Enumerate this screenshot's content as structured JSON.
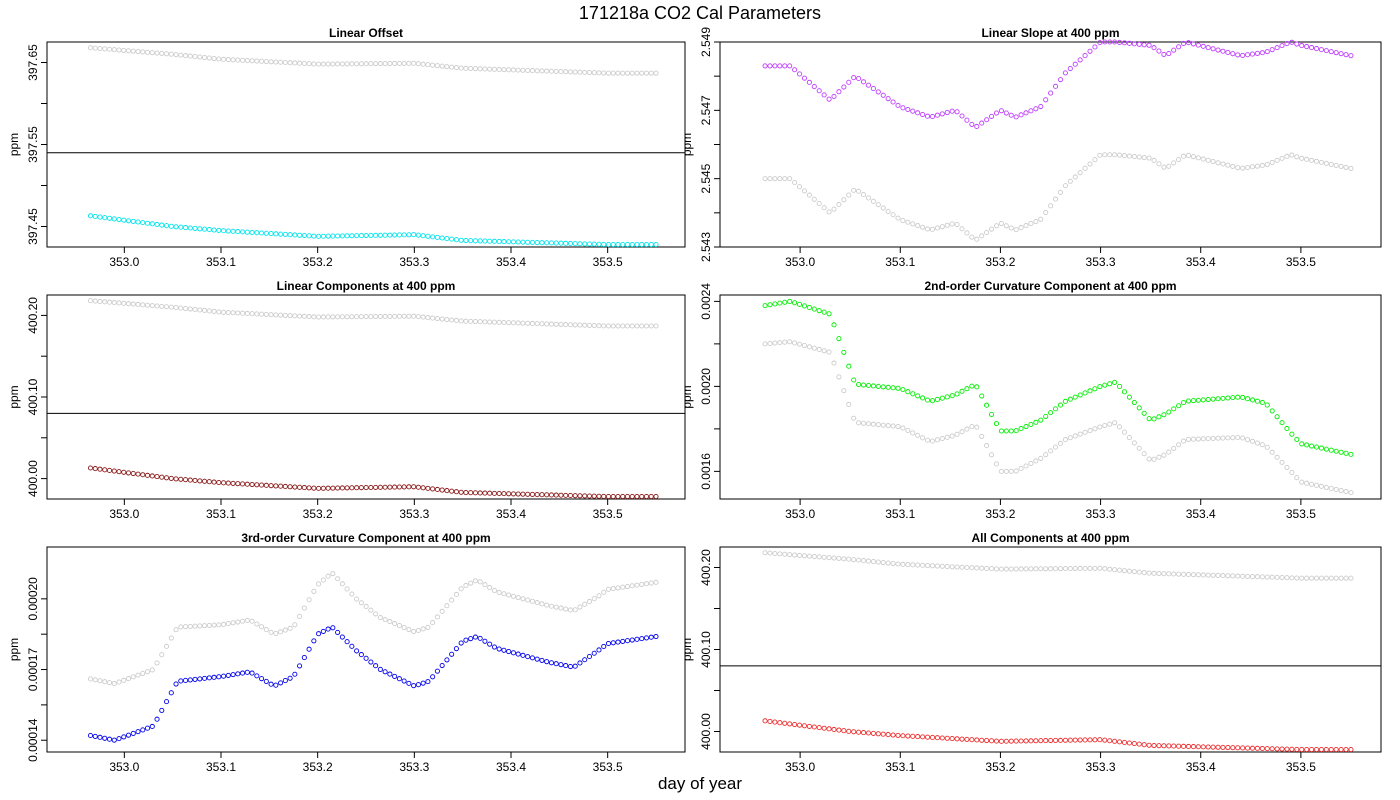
{
  "page": {
    "title": "171218a   CO2 Cal Parameters",
    "xlabel": "day of year"
  },
  "chart_data": [
    {
      "type": "scatter",
      "title": "Linear Offset",
      "ylabel": "ppm",
      "xlim": [
        352.92,
        353.58
      ],
      "ylim": [
        397.425,
        397.675
      ],
      "x_ticks": [
        353.0,
        353.1,
        353.2,
        353.3,
        353.4,
        353.5
      ],
      "x_tick_labels": [
        "353.0",
        "353.1",
        "353.2",
        "353.3",
        "353.4",
        "353.5"
      ],
      "y_ticks": [
        397.45,
        397.5,
        397.55,
        397.6,
        397.65
      ],
      "y_tick_labels": [
        "397.45",
        "",
        "397.55",
        "",
        "397.65"
      ],
      "hline": 397.54,
      "x_range": [
        352.965,
        353.55
      ],
      "series": [
        {
          "color": "#cccccc",
          "x": [
            352.965,
            353.05,
            353.1,
            353.2,
            353.3,
            353.35,
            353.5,
            353.55
          ],
          "y": [
            397.668,
            397.66,
            397.654,
            397.648,
            397.649,
            397.643,
            397.637,
            397.637
          ]
        },
        {
          "color": "#00e5ee",
          "x": [
            352.965,
            353.05,
            353.1,
            353.2,
            353.3,
            353.35,
            353.5,
            353.55
          ],
          "y": [
            397.463,
            397.45,
            397.445,
            397.438,
            397.44,
            397.433,
            397.428,
            397.428
          ]
        }
      ]
    },
    {
      "type": "scatter",
      "title": "Linear Slope at 400 ppm",
      "ylabel": "ppm",
      "xlim": [
        352.92,
        353.58
      ],
      "ylim": [
        2.543,
        2.549
      ],
      "x_ticks": [
        353.0,
        353.1,
        353.2,
        353.3,
        353.4,
        353.5
      ],
      "x_tick_labels": [
        "353.0",
        "353.1",
        "353.2",
        "353.3",
        "353.4",
        "353.5"
      ],
      "y_ticks": [
        2.543,
        2.544,
        2.545,
        2.546,
        2.547,
        2.548,
        2.549
      ],
      "y_tick_labels": [
        "2.543",
        "",
        "2.545",
        "",
        "2.547",
        "",
        "2.549"
      ],
      "hline": null,
      "x_range": [
        352.965,
        353.55
      ],
      "series": [
        {
          "color": "#cccccc",
          "x": [
            352.965,
            352.99,
            353.03,
            353.055,
            353.1,
            353.13,
            353.155,
            353.175,
            353.2,
            353.215,
            353.24,
            353.265,
            353.3,
            353.315,
            353.35,
            353.365,
            353.385,
            353.44,
            353.465,
            353.49,
            353.5,
            353.55
          ],
          "y": [
            2.545,
            2.545,
            2.544,
            2.5447,
            2.5438,
            2.5435,
            2.5437,
            2.5432,
            2.5437,
            2.5435,
            2.5438,
            2.5448,
            2.5457,
            2.5457,
            2.5456,
            2.5453,
            2.5457,
            2.5453,
            2.5454,
            2.5457,
            2.5456,
            2.5453
          ]
        },
        {
          "color": "#bf3eff",
          "x": [
            352.965,
            352.99,
            353.03,
            353.055,
            353.1,
            353.13,
            353.155,
            353.175,
            353.2,
            353.215,
            353.24,
            353.265,
            353.3,
            353.315,
            353.35,
            353.365,
            353.385,
            353.44,
            353.465,
            353.49,
            353.5,
            353.55
          ],
          "y": [
            2.5483,
            2.5483,
            2.5473,
            2.548,
            2.5471,
            2.5468,
            2.547,
            2.5465,
            2.547,
            2.5468,
            2.5471,
            2.5481,
            2.549,
            2.549,
            2.5489,
            2.5486,
            2.549,
            2.5486,
            2.5487,
            2.549,
            2.5489,
            2.5486
          ]
        }
      ]
    },
    {
      "type": "scatter",
      "title": "Linear Components at 400 ppm",
      "ylabel": "ppm",
      "xlim": [
        352.92,
        353.58
      ],
      "ylim": [
        399.975,
        400.225
      ],
      "x_ticks": [
        353.0,
        353.1,
        353.2,
        353.3,
        353.4,
        353.5
      ],
      "x_tick_labels": [
        "353.0",
        "353.1",
        "353.2",
        "353.3",
        "353.4",
        "353.5"
      ],
      "y_ticks": [
        400.0,
        400.05,
        400.1,
        400.15,
        400.2
      ],
      "y_tick_labels": [
        "400.00",
        "",
        "400.10",
        "",
        "400.20"
      ],
      "hline": 400.08,
      "x_range": [
        352.965,
        353.55
      ],
      "series": [
        {
          "color": "#cccccc",
          "x": [
            352.965,
            353.05,
            353.1,
            353.2,
            353.3,
            353.35,
            353.5,
            353.55
          ],
          "y": [
            400.218,
            400.21,
            400.204,
            400.198,
            400.199,
            400.193,
            400.187,
            400.187
          ]
        },
        {
          "color": "#8b1a1a",
          "x": [
            352.965,
            353.05,
            353.1,
            353.2,
            353.3,
            353.35,
            353.5,
            353.55
          ],
          "y": [
            400.013,
            400.0,
            399.995,
            399.988,
            399.99,
            399.983,
            399.978,
            399.978
          ]
        }
      ]
    },
    {
      "type": "scatter",
      "title": "2nd-order Curvature Component at 400 ppm",
      "ylabel": "ppm",
      "xlim": [
        352.92,
        353.58
      ],
      "ylim": [
        0.00147,
        0.00243
      ],
      "x_ticks": [
        353.0,
        353.1,
        353.2,
        353.3,
        353.4,
        353.5
      ],
      "x_tick_labels": [
        "353.0",
        "353.1",
        "353.2",
        "353.3",
        "353.4",
        "353.5"
      ],
      "y_ticks": [
        0.0016,
        0.0018,
        0.002,
        0.0022,
        0.0024
      ],
      "y_tick_labels": [
        "0.0016",
        "",
        "0.0020",
        "",
        "0.0024"
      ],
      "hline": null,
      "x_range": [
        352.965,
        353.55
      ],
      "series": [
        {
          "color": "#cccccc",
          "x": [
            352.965,
            352.99,
            353.03,
            353.055,
            353.1,
            353.13,
            353.155,
            353.175,
            353.2,
            353.215,
            353.24,
            353.265,
            353.3,
            353.315,
            353.35,
            353.365,
            353.385,
            353.44,
            353.465,
            353.49,
            353.5,
            353.55
          ],
          "y": [
            0.0022,
            0.00221,
            0.00216,
            0.00183,
            0.00181,
            0.00174,
            0.00177,
            0.00182,
            0.0016,
            0.0016,
            0.00166,
            0.00175,
            0.00181,
            0.00183,
            0.00165,
            0.00168,
            0.00175,
            0.00176,
            0.00172,
            0.0016,
            0.00155,
            0.0015
          ]
        },
        {
          "color": "#00ee00",
          "x": [
            352.965,
            352.99,
            353.03,
            353.055,
            353.1,
            353.13,
            353.155,
            353.175,
            353.2,
            353.215,
            353.24,
            353.265,
            353.3,
            353.315,
            353.35,
            353.365,
            353.385,
            353.44,
            353.465,
            353.49,
            353.5,
            353.55
          ],
          "y": [
            0.00238,
            0.0024,
            0.00234,
            0.00201,
            0.00199,
            0.00193,
            0.00196,
            0.00201,
            0.00179,
            0.00179,
            0.00184,
            0.00193,
            0.002,
            0.00202,
            0.00184,
            0.00187,
            0.00193,
            0.00195,
            0.00192,
            0.00178,
            0.00173,
            0.00168
          ]
        }
      ]
    },
    {
      "type": "scatter",
      "title": "3rd-order Curvature Component at 400 ppm",
      "ylabel": "ppm",
      "xlim": [
        352.92,
        353.58
      ],
      "ylim": [
        0.000135,
        0.000222
      ],
      "x_ticks": [
        353.0,
        353.1,
        353.2,
        353.3,
        353.4,
        353.5
      ],
      "x_tick_labels": [
        "353.0",
        "353.1",
        "353.2",
        "353.3",
        "353.4",
        "353.5"
      ],
      "y_ticks": [
        0.00014,
        0.000155,
        0.00017,
        0.000185,
        0.0002
      ],
      "y_tick_labels": [
        "0.00014",
        "",
        "0.00017",
        "",
        "0.00020"
      ],
      "hline": null,
      "x_range": [
        352.965,
        353.55
      ],
      "series": [
        {
          "color": "#cccccc",
          "x": [
            352.965,
            352.99,
            353.03,
            353.055,
            353.1,
            353.13,
            353.155,
            353.175,
            353.2,
            353.215,
            353.24,
            353.265,
            353.3,
            353.315,
            353.35,
            353.365,
            353.385,
            353.44,
            353.465,
            353.49,
            353.5,
            353.55
          ],
          "y": [
            0.000166,
            0.000164,
            0.00017,
            0.000188,
            0.000189,
            0.000191,
            0.000185,
            0.000188,
            0.000206,
            0.000211,
            0.0002,
            0.000192,
            0.000186,
            0.000188,
            0.000205,
            0.000208,
            0.000203,
            0.000197,
            0.000195,
            0.000201,
            0.000204,
            0.000207
          ]
        },
        {
          "color": "#0000ee",
          "x": [
            352.965,
            352.99,
            353.03,
            353.055,
            353.1,
            353.13,
            353.155,
            353.175,
            353.2,
            353.215,
            353.24,
            353.265,
            353.3,
            353.315,
            353.35,
            353.365,
            353.385,
            353.44,
            353.465,
            353.49,
            353.5,
            353.55
          ],
          "y": [
            0.000142,
            0.00014,
            0.000146,
            0.000165,
            0.000167,
            0.000169,
            0.000163,
            0.000167,
            0.000185,
            0.000188,
            0.000178,
            0.00017,
            0.000163,
            0.000165,
            0.000182,
            0.000184,
            0.000179,
            0.000173,
            0.000171,
            0.000178,
            0.000181,
            0.000184
          ]
        }
      ]
    },
    {
      "type": "scatter",
      "title": "All Components at 400 ppm",
      "ylabel": "ppm",
      "xlim": [
        352.92,
        353.58
      ],
      "ylim": [
        399.975,
        400.225
      ],
      "x_ticks": [
        353.0,
        353.1,
        353.2,
        353.3,
        353.4,
        353.5
      ],
      "x_tick_labels": [
        "353.0",
        "353.1",
        "353.2",
        "353.3",
        "353.4",
        "353.5"
      ],
      "y_ticks": [
        400.0,
        400.05,
        400.1,
        400.15,
        400.2
      ],
      "y_tick_labels": [
        "400.00",
        "",
        "400.10",
        "",
        "400.20"
      ],
      "hline": 400.08,
      "x_range": [
        352.965,
        353.55
      ],
      "series": [
        {
          "color": "#cccccc",
          "x": [
            352.965,
            353.05,
            353.1,
            353.2,
            353.3,
            353.35,
            353.5,
            353.55
          ],
          "y": [
            400.218,
            400.21,
            400.204,
            400.198,
            400.199,
            400.193,
            400.187,
            400.187
          ]
        },
        {
          "color": "#ee2c2c",
          "x": [
            352.965,
            353.05,
            353.1,
            353.2,
            353.3,
            353.35,
            353.5,
            353.55
          ],
          "y": [
            400.013,
            400.0,
            399.995,
            399.988,
            399.99,
            399.983,
            399.978,
            399.978
          ]
        }
      ]
    }
  ]
}
